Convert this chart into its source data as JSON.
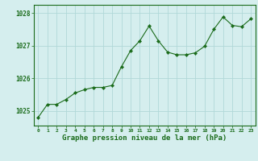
{
  "x": [
    0,
    1,
    2,
    3,
    4,
    5,
    6,
    7,
    8,
    9,
    10,
    11,
    12,
    13,
    14,
    15,
    16,
    17,
    18,
    19,
    20,
    21,
    22,
    23
  ],
  "y": [
    1024.8,
    1025.2,
    1025.2,
    1025.35,
    1025.55,
    1025.65,
    1025.72,
    1025.72,
    1025.78,
    1026.35,
    1026.85,
    1027.15,
    1027.6,
    1027.15,
    1026.8,
    1026.72,
    1026.72,
    1026.78,
    1026.98,
    1027.5,
    1027.88,
    1027.62,
    1027.58,
    1027.82
  ],
  "line_color": "#1a6b1a",
  "marker": "D",
  "marker_size": 2.2,
  "bg_color": "#d5eeee",
  "grid_color": "#b0d8d8",
  "ylim": [
    1024.55,
    1028.25
  ],
  "xlim": [
    -0.5,
    23.5
  ],
  "xlabel": "Graphe pression niveau de la mer (hPa)",
  "yticks": [
    1025,
    1026,
    1027,
    1028
  ],
  "xticks": [
    0,
    1,
    2,
    3,
    4,
    5,
    6,
    7,
    8,
    9,
    10,
    11,
    12,
    13,
    14,
    15,
    16,
    17,
    18,
    19,
    20,
    21,
    22,
    23
  ],
  "tick_labels": [
    "0",
    "1",
    "2",
    "3",
    "4",
    "5",
    "6",
    "7",
    "8",
    "9",
    "10",
    "11",
    "12",
    "13",
    "14",
    "15",
    "16",
    "17",
    "18",
    "19",
    "20",
    "21",
    "22",
    "23"
  ]
}
